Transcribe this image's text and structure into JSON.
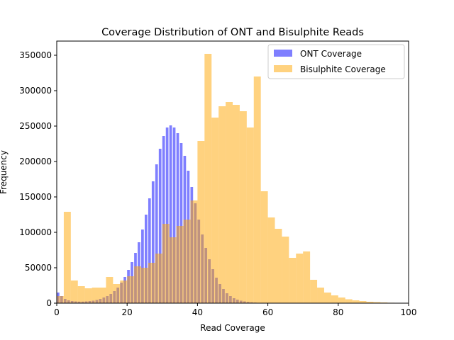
{
  "chart_data": {
    "type": "bar",
    "title": "Coverage Distribution of ONT and Bisulphite Reads",
    "xlabel": "Read Coverage",
    "ylabel": "Frequency",
    "xlim": [
      0,
      100
    ],
    "ylim": [
      0,
      370000
    ],
    "xticks": [
      0,
      20,
      40,
      60,
      80,
      100
    ],
    "yticks": [
      0,
      50000,
      100000,
      150000,
      200000,
      250000,
      300000,
      350000
    ],
    "legend_position": "top-right",
    "grid": false,
    "series": [
      {
        "name": "ONT Coverage",
        "color": "#0000ff",
        "opacity": 0.5,
        "bin_width": 1,
        "x": [
          0,
          1,
          2,
          3,
          4,
          5,
          6,
          7,
          8,
          9,
          10,
          11,
          12,
          13,
          14,
          15,
          16,
          17,
          18,
          19,
          20,
          21,
          22,
          23,
          24,
          25,
          26,
          27,
          28,
          29,
          30,
          31,
          32,
          33,
          34,
          35,
          36,
          37,
          38,
          39,
          40,
          41,
          42,
          43,
          44,
          45,
          46,
          47,
          48,
          49,
          50,
          51,
          52,
          53,
          54,
          55,
          56,
          57,
          58,
          59,
          60,
          61,
          62,
          63,
          64,
          65,
          66,
          67,
          68,
          69,
          70
        ],
        "values": [
          15000,
          10000,
          6000,
          4000,
          3000,
          2500,
          2200,
          2200,
          2500,
          3000,
          3500,
          4500,
          6000,
          8000,
          10000,
          13000,
          17000,
          22000,
          29000,
          37000,
          47000,
          58000,
          71000,
          86000,
          104000,
          125000,
          148000,
          172000,
          196000,
          218000,
          236000,
          248000,
          251000,
          248000,
          240000,
          226000,
          208000,
          187000,
          164000,
          141000,
          118000,
          97000,
          78000,
          62000,
          48000,
          36000,
          27000,
          20000,
          14000,
          10000,
          7000,
          5000,
          3500,
          2500,
          1700,
          1200,
          800,
          500,
          300,
          200,
          150,
          100,
          80,
          60,
          40,
          30,
          20,
          15,
          10,
          5,
          0
        ]
      },
      {
        "name": "Bisulphite Coverage",
        "color": "#ffa500",
        "opacity": 0.5,
        "bin_width": 2,
        "x": [
          0,
          2,
          4,
          6,
          8,
          10,
          12,
          14,
          16,
          18,
          20,
          22,
          24,
          26,
          28,
          30,
          32,
          34,
          36,
          38,
          40,
          42,
          44,
          46,
          48,
          50,
          52,
          54,
          56,
          58,
          60,
          62,
          64,
          66,
          68,
          70,
          72,
          74,
          76,
          78,
          80,
          82,
          84,
          86,
          88,
          90,
          92,
          94,
          96
        ],
        "values": [
          10000,
          129000,
          32000,
          24000,
          21000,
          22000,
          22000,
          37000,
          27000,
          32000,
          38000,
          52000,
          50000,
          57000,
          70000,
          112000,
          93000,
          109000,
          118000,
          145000,
          229000,
          352000,
          262000,
          278000,
          284000,
          280000,
          271000,
          248000,
          320000,
          158000,
          121000,
          105000,
          94000,
          64000,
          70000,
          73000,
          33000,
          22000,
          15000,
          11000,
          8000,
          5500,
          4000,
          3000,
          2000,
          1500,
          1000,
          600,
          300
        ]
      }
    ]
  }
}
